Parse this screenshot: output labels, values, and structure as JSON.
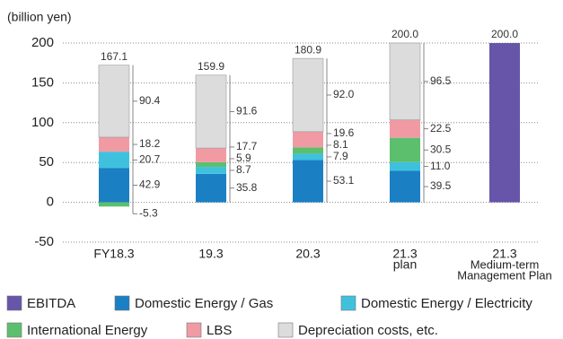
{
  "chart_data": {
    "type": "stacked-bar",
    "y_label": "(billion yen)",
    "categories": [
      [
        "FY18.3"
      ],
      [
        "19.3"
      ],
      [
        "20.3"
      ],
      [
        "21.3",
        "plan"
      ],
      [
        "21.3",
        "Medium-term",
        "Management Plan"
      ]
    ],
    "ylim": [
      -50,
      200
    ],
    "yticks": [
      -50,
      0,
      50,
      100,
      150,
      200
    ],
    "grid": true,
    "series": [
      {
        "name": "Domestic Energy / Gas",
        "color": "#1b7fc4",
        "values": [
          42.9,
          35.8,
          53.1,
          39.5,
          null
        ],
        "value_labels": [
          "42.9",
          "35.8",
          "53.1",
          "39.5",
          null
        ]
      },
      {
        "name": "Domestic Energy / Electricity",
        "color": "#3fc1de",
        "values": [
          20.7,
          8.7,
          7.9,
          11.0,
          null
        ],
        "value_labels": [
          "20.7",
          "8.7",
          "7.9",
          "11.0",
          null
        ]
      },
      {
        "name": "International Energy",
        "color": "#5cbf6e",
        "values": [
          -5.3,
          5.9,
          8.1,
          30.5,
          null
        ],
        "value_labels": [
          "-5.3",
          "5.9",
          "8.1",
          "30.5",
          null
        ]
      },
      {
        "name": "LBS",
        "color": "#f19aa3",
        "values": [
          18.2,
          17.7,
          19.6,
          22.5,
          null
        ],
        "value_labels": [
          "18.2",
          "17.7",
          "19.6",
          "22.5",
          null
        ]
      },
      {
        "name": "Depreciation costs, etc.",
        "color": "#dcdcdc",
        "values": [
          90.4,
          91.6,
          92.0,
          96.5,
          null
        ],
        "value_labels": [
          "90.4",
          "91.6",
          "92.0",
          "96.5",
          null
        ]
      },
      {
        "name": "EBITDA",
        "color": "#6655a8",
        "values": [
          null,
          null,
          null,
          null,
          200.0
        ],
        "value_labels": [
          null,
          null,
          null,
          null,
          "200.0"
        ]
      }
    ],
    "total_labels": [
      "167.1",
      "159.9",
      "180.9",
      "200.0",
      null
    ],
    "legend_order": [
      5,
      0,
      1,
      2,
      3,
      4
    ]
  }
}
